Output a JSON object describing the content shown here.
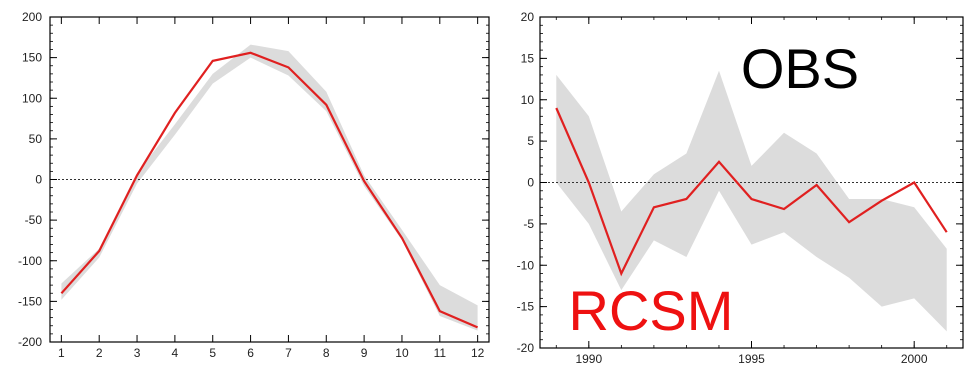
{
  "chart_data": [
    {
      "type": "line",
      "title": "",
      "xlabel": "",
      "ylabel": "",
      "xlim": [
        0.7,
        12.3
      ],
      "ylim": [
        -200,
        200
      ],
      "x_ticks": [
        "1",
        "2",
        "3",
        "4",
        "5",
        "6",
        "7",
        "8",
        "9",
        "10",
        "11",
        "12"
      ],
      "y_ticks": [
        "200",
        "150",
        "100",
        "50",
        "0",
        "-50",
        "-100",
        "-150",
        "-200"
      ],
      "reference_line_y": 0,
      "grid": false,
      "series": [
        {
          "kind": "line",
          "color": "#e02020",
          "x": [
            1,
            2,
            3,
            4,
            5,
            6,
            7,
            8,
            9,
            10,
            11,
            12
          ],
          "values": [
            -140,
            -88,
            5,
            82,
            146,
            156,
            138,
            92,
            -2,
            -72,
            -162,
            -182
          ]
        },
        {
          "kind": "band",
          "color": "#dcdcdc",
          "x": [
            1,
            2,
            3,
            4,
            5,
            6,
            7,
            8,
            9,
            10,
            11,
            12
          ],
          "upper": [
            -128,
            -85,
            8,
            68,
            130,
            166,
            158,
            108,
            5,
            -62,
            -130,
            -155
          ],
          "lower": [
            -148,
            -96,
            -5,
            55,
            118,
            150,
            128,
            84,
            -8,
            -75,
            -168,
            -186
          ]
        }
      ]
    },
    {
      "type": "line",
      "title": "",
      "xlabel": "",
      "ylabel": "",
      "xlim": [
        1988.5,
        2001.5
      ],
      "ylim": [
        -20,
        20
      ],
      "x_ticks": [
        "1990",
        "1995",
        "2000"
      ],
      "y_ticks": [
        "20",
        "15",
        "10",
        "5",
        "0",
        "-5",
        "-10",
        "-15",
        "-20"
      ],
      "reference_line_y": 0,
      "grid": false,
      "annotations": {
        "top": "OBS",
        "bottom": "RCSM"
      },
      "annotation_colors": {
        "top": "#000000",
        "bottom": "#ee1111"
      },
      "series": [
        {
          "kind": "line",
          "color": "#e02020",
          "x": [
            1989,
            1990,
            1991,
            1992,
            1993,
            1994,
            1995,
            1996,
            1997,
            1998,
            1999,
            2000,
            2001
          ],
          "values": [
            9,
            0,
            -11,
            -3,
            -2,
            2.5,
            -2,
            -3.2,
            -0.3,
            -4.8,
            -2.2,
            0,
            -6
          ]
        },
        {
          "kind": "band",
          "color": "#dcdcdc",
          "x": [
            1989,
            1990,
            1991,
            1992,
            1993,
            1994,
            1995,
            1996,
            1997,
            1998,
            1999,
            2000,
            2001
          ],
          "upper": [
            13,
            8,
            -3.5,
            1,
            3.5,
            13.5,
            2,
            6,
            3.5,
            -2,
            -2,
            -3,
            -8
          ],
          "lower": [
            0,
            -5,
            -13,
            -7,
            -9,
            -1,
            -7.5,
            -6,
            -9,
            -11.5,
            -15,
            -14,
            -18
          ]
        }
      ]
    }
  ]
}
